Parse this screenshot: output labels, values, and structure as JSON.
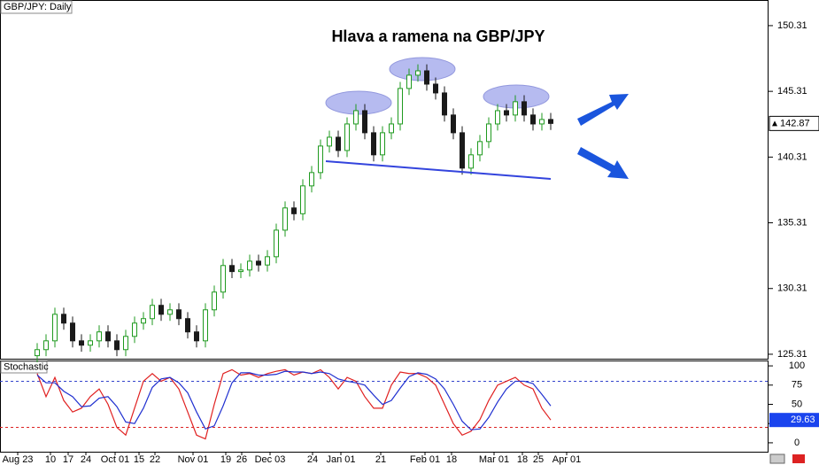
{
  "chart_data": [
    {
      "type": "candlestick",
      "title": "Hlava a ramena na GBP/JPY",
      "label": "GBP/JPY: Daily",
      "up_color": "#1f9a1f",
      "down_color": "#1a1a1a",
      "open": [
        125.2,
        125.66,
        126.33,
        128.35,
        127.68,
        126.33,
        126.0,
        126.33,
        127.01,
        126.33,
        125.66,
        126.67,
        127.68,
        128.02,
        129.03,
        128.35,
        128.69,
        128.02,
        127.01,
        126.33,
        128.69,
        130.04,
        132.06,
        131.6,
        131.72,
        132.39,
        132.1,
        132.73,
        134.75,
        136.44,
        136.0,
        138.12,
        139.13,
        141.15,
        141.82,
        140.81,
        142.83,
        143.84,
        142.16,
        140.48,
        142.16,
        142.83,
        145.53,
        146.54,
        146.87,
        145.86,
        145.19,
        143.51,
        142.16,
        139.47,
        140.48,
        141.49,
        142.83,
        143.84,
        143.51,
        144.52,
        143.51,
        142.83,
        143.17
      ],
      "high": [
        126.16,
        126.83,
        128.85,
        128.85,
        128.18,
        126.83,
        126.83,
        127.51,
        127.51,
        126.83,
        127.17,
        128.18,
        128.52,
        129.53,
        129.53,
        129.19,
        129.19,
        128.52,
        127.51,
        129.19,
        130.54,
        132.56,
        132.56,
        132.22,
        132.89,
        132.89,
        133.23,
        135.25,
        136.94,
        136.94,
        138.62,
        139.63,
        141.65,
        142.32,
        142.32,
        143.33,
        144.34,
        144.34,
        142.66,
        142.66,
        143.33,
        146.03,
        147.04,
        147.37,
        147.37,
        146.36,
        145.69,
        144.01,
        142.66,
        140.98,
        141.99,
        143.33,
        144.34,
        144.34,
        145.02,
        145.02,
        144.01,
        143.67,
        143.67
      ],
      "low": [
        124.7,
        125.16,
        125.83,
        127.18,
        125.83,
        125.5,
        125.5,
        125.83,
        125.83,
        125.16,
        125.16,
        126.17,
        127.18,
        127.52,
        127.85,
        127.85,
        127.52,
        126.51,
        125.83,
        125.83,
        128.19,
        129.54,
        131.1,
        131.1,
        131.22,
        131.6,
        131.6,
        132.23,
        134.25,
        135.5,
        135.5,
        137.62,
        138.63,
        140.65,
        140.31,
        140.31,
        142.33,
        141.66,
        139.98,
        139.98,
        141.66,
        142.33,
        145.03,
        146.04,
        145.36,
        144.69,
        143.01,
        141.66,
        138.97,
        138.97,
        139.98,
        140.99,
        142.33,
        143.01,
        143.01,
        143.01,
        142.33,
        142.33,
        142.37
      ],
      "close": [
        125.66,
        126.33,
        128.35,
        127.68,
        126.33,
        126.0,
        126.33,
        127.01,
        126.33,
        125.66,
        126.67,
        127.68,
        128.02,
        129.03,
        128.35,
        128.69,
        128.02,
        127.01,
        126.33,
        128.69,
        130.04,
        132.06,
        131.6,
        131.72,
        132.39,
        132.1,
        132.73,
        134.75,
        136.44,
        136.0,
        138.12,
        139.13,
        141.15,
        141.82,
        140.81,
        142.83,
        143.84,
        142.16,
        140.48,
        142.16,
        142.83,
        145.53,
        146.54,
        146.87,
        145.86,
        145.19,
        143.51,
        142.16,
        139.47,
        140.48,
        141.49,
        142.83,
        143.84,
        143.51,
        144.52,
        143.51,
        142.83,
        143.17,
        142.87
      ],
      "ylim": [
        124.97,
        152.26
      ],
      "yticks": [
        125.31,
        130.31,
        135.31,
        140.31,
        145.31,
        150.31
      ],
      "xlim": [
        -4.2,
        82.6
      ],
      "xticks": [
        {
          "value": -2.2,
          "label": "Aug 23"
        },
        {
          "value": 1.5,
          "label": "10"
        },
        {
          "value": 3.5,
          "label": "17"
        },
        {
          "value": 5.5,
          "label": "24"
        },
        {
          "value": 8.8,
          "label": "Oct 01"
        },
        {
          "value": 11.5,
          "label": "15"
        },
        {
          "value": 13.3,
          "label": "22"
        },
        {
          "value": 17.6,
          "label": "Nov 01"
        },
        {
          "value": 21.3,
          "label": "19"
        },
        {
          "value": 23.1,
          "label": "26"
        },
        {
          "value": 26.3,
          "label": "Dec 03"
        },
        {
          "value": 31.1,
          "label": "24"
        },
        {
          "value": 34.3,
          "label": "Jan 01"
        },
        {
          "value": 38.8,
          "label": "21"
        },
        {
          "value": 43.8,
          "label": "Feb 01"
        },
        {
          "value": 46.8,
          "label": "18"
        },
        {
          "value": 51.6,
          "label": "Mar 01"
        },
        {
          "value": 54.8,
          "label": "18"
        },
        {
          "value": 56.6,
          "label": "25"
        },
        {
          "value": 59.8,
          "label": "Apr 01"
        }
      ]
    },
    {
      "type": "line",
      "label": "Stochastic",
      "series": [
        {
          "color": "#e02020",
          "values": [
            90,
            60,
            85,
            55,
            40,
            45,
            60,
            70,
            50,
            20,
            10,
            45,
            80,
            90,
            80,
            85,
            70,
            40,
            10,
            5,
            50,
            90,
            95,
            88,
            90,
            85,
            90,
            93,
            95,
            88,
            92,
            90,
            95,
            85,
            70,
            85,
            80,
            60,
            45,
            45,
            75,
            92,
            90,
            90,
            85,
            75,
            50,
            25,
            10,
            15,
            30,
            55,
            75,
            80,
            85,
            75,
            70,
            45,
            29.63
          ]
        },
        {
          "color": "#2030d0",
          "values": [
            88,
            78,
            78,
            67,
            60,
            47,
            48,
            58,
            60,
            47,
            27,
            25,
            45,
            72,
            83,
            85,
            78,
            65,
            40,
            18,
            22,
            48,
            78,
            91,
            91,
            88,
            88,
            89,
            93,
            92,
            92,
            90,
            92,
            90,
            83,
            80,
            78,
            75,
            62,
            50,
            55,
            71,
            86,
            91,
            89,
            83,
            70,
            50,
            28,
            17,
            18,
            33,
            53,
            70,
            80,
            80,
            77,
            63,
            48
          ]
        }
      ],
      "overbought": 80,
      "oversold": 20,
      "ylim": [
        -11.6,
        107
      ],
      "yticks": [
        0,
        25,
        50,
        75,
        100
      ]
    }
  ]
}
